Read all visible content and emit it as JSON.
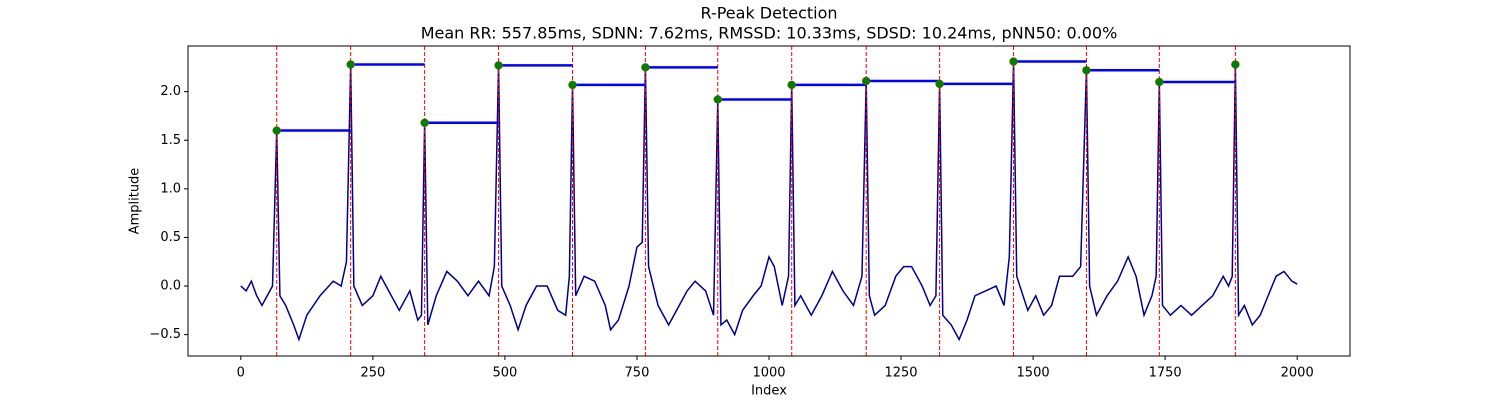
{
  "chart_data": {
    "type": "line",
    "title": "R-Peak Detection",
    "subtitle": "Mean RR: 557.85ms, SDNN: 7.62ms, RMSSD: 10.33ms, SDSD: 10.24ms, pNN50: 0.00%",
    "x_label": "Index",
    "y_label": "Amplitude",
    "xlim": [
      -100,
      2100
    ],
    "ylim": [
      -0.72,
      2.47
    ],
    "xticks": [
      0,
      250,
      500,
      750,
      1000,
      1250,
      1500,
      1750,
      2000
    ],
    "yticks": [
      {
        "value": -0.5,
        "label": "−0.5"
      },
      {
        "value": 0,
        "label": "0.0"
      },
      0.5,
      {
        "value": 1,
        "label": "1.0"
      },
      1.5,
      {
        "value": 2,
        "label": "2.0"
      }
    ],
    "x": [
      0,
      10,
      20,
      30,
      40,
      50,
      60,
      68,
      74,
      85,
      100,
      110,
      125,
      150,
      175,
      190,
      200,
      208,
      214,
      230,
      250,
      265,
      280,
      300,
      320,
      335,
      342,
      348,
      354,
      370,
      390,
      410,
      430,
      450,
      470,
      480,
      488,
      494,
      510,
      525,
      540,
      560,
      580,
      600,
      615,
      622,
      628,
      634,
      650,
      670,
      690,
      700,
      715,
      735,
      750,
      760,
      766,
      772,
      790,
      810,
      830,
      845,
      860,
      880,
      895,
      903,
      909,
      920,
      935,
      950,
      970,
      985,
      1000,
      1010,
      1025,
      1037,
      1043,
      1049,
      1060,
      1080,
      1100,
      1120,
      1140,
      1160,
      1176,
      1184,
      1190,
      1200,
      1220,
      1240,
      1255,
      1270,
      1290,
      1305,
      1316,
      1323,
      1329,
      1345,
      1360,
      1375,
      1390,
      1410,
      1430,
      1445,
      1455,
      1463,
      1469,
      1490,
      1505,
      1520,
      1535,
      1550,
      1575,
      1590,
      1601,
      1607,
      1620,
      1640,
      1660,
      1680,
      1695,
      1710,
      1725,
      1733,
      1739,
      1745,
      1760,
      1780,
      1800,
      1820,
      1840,
      1860,
      1870,
      1877,
      1883,
      1889,
      1900,
      1915,
      1930,
      1945,
      1960,
      1975,
      1990,
      2000
    ],
    "series": [
      {
        "color": "#00008b",
        "values": [
          0.0,
          -0.05,
          0.05,
          -0.1,
          -0.2,
          -0.1,
          0.0,
          1.6,
          -0.1,
          -0.2,
          -0.4,
          -0.55,
          -0.3,
          -0.1,
          0.05,
          0.0,
          0.25,
          2.28,
          0.0,
          -0.2,
          -0.1,
          0.1,
          -0.05,
          -0.25,
          -0.05,
          -0.35,
          -0.3,
          1.68,
          -0.4,
          -0.1,
          0.15,
          0.05,
          -0.1,
          0.05,
          -0.1,
          0.2,
          2.27,
          0.0,
          -0.2,
          -0.45,
          -0.2,
          0.0,
          0.0,
          -0.25,
          -0.3,
          0.1,
          2.07,
          -0.1,
          0.1,
          0.05,
          -0.2,
          -0.45,
          -0.35,
          0.0,
          0.4,
          0.45,
          2.25,
          0.2,
          -0.2,
          -0.4,
          -0.2,
          -0.05,
          0.05,
          -0.05,
          -0.3,
          1.92,
          -0.4,
          -0.35,
          -0.5,
          -0.25,
          -0.1,
          0.0,
          0.3,
          0.2,
          -0.2,
          0.1,
          2.07,
          -0.2,
          -0.1,
          -0.3,
          -0.1,
          0.15,
          -0.05,
          -0.2,
          0.1,
          2.11,
          -0.1,
          -0.3,
          -0.2,
          0.1,
          0.2,
          0.2,
          0.0,
          -0.2,
          -0.1,
          2.08,
          -0.3,
          -0.4,
          -0.55,
          -0.35,
          -0.1,
          -0.05,
          0.0,
          -0.2,
          0.3,
          2.31,
          0.1,
          -0.25,
          -0.1,
          -0.3,
          -0.2,
          0.1,
          0.1,
          0.2,
          2.22,
          0.0,
          -0.3,
          -0.1,
          0.05,
          0.3,
          0.1,
          -0.3,
          -0.1,
          0.1,
          2.1,
          -0.2,
          -0.3,
          -0.2,
          -0.3,
          -0.2,
          -0.1,
          0.1,
          0.0,
          0.1,
          2.28,
          -0.3,
          -0.2,
          -0.4,
          -0.3,
          -0.1,
          0.1,
          0.15,
          0.05,
          0.02
        ]
      }
    ],
    "peaks": {
      "x": [
        68,
        208,
        348,
        488,
        628,
        766,
        903,
        1043,
        1184,
        1323,
        1463,
        1601,
        1739,
        1883
      ],
      "values": [
        1.6,
        2.28,
        1.68,
        2.27,
        2.07,
        2.25,
        1.92,
        2.07,
        2.11,
        2.08,
        2.31,
        2.22,
        2.1,
        2.28
      ],
      "color": "#008000",
      "vline_color": "#ff0000",
      "rr_color": "#0000ff"
    }
  }
}
